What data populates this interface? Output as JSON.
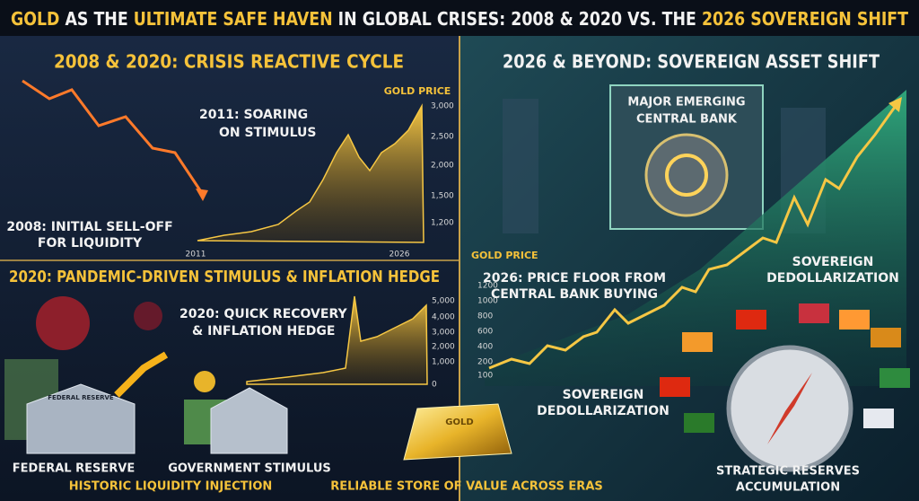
{
  "header": {
    "title": [
      "GOLD",
      " AS THE ",
      "ULTIMATE SAFE HAVEN",
      " IN GLOBAL CRISES: 2008 & 2020 VS. THE ",
      "2026 SOVEREIGN SHIFT"
    ]
  },
  "crisis_panel": {
    "heading": "2008 & 2020: CRISIS REACTIVE CYCLE",
    "chart_label": "GOLD PRICE",
    "yticks": [
      "3,000",
      "2,500",
      "2,000",
      "1,500",
      "1,200"
    ],
    "xticks": [
      "2011",
      "2026"
    ],
    "callouts": [
      [
        "2011: SOARING",
        "ON STIMULUS"
      ],
      [
        "2008: INITIAL SELL-OFF",
        "FOR LIQUIDITY"
      ]
    ]
  },
  "pandemic_panel": {
    "heading": "2020: PANDEMIC-DRIVEN STIMULUS & INFLATION HEDGE",
    "callout": [
      "2020: QUICK RECOVERY",
      "& INFLATION HEDGE"
    ],
    "yticks": [
      "5,000",
      "4,000",
      "3,000",
      "2,000",
      "1,000",
      "0"
    ],
    "building_sign": "FEDERAL RESERVE",
    "labels": [
      "FEDERAL RESERVE",
      "GOVERNMENT STIMULUS"
    ],
    "footer": "HISTORIC LIQUIDITY INJECTION"
  },
  "center": {
    "bar_label": "GOLD",
    "caption": "RELIABLE STORE OF VALUE ACROSS ERAS"
  },
  "sovereign_panel": {
    "heading": "2026 & BEYOND: SOVEREIGN ASSET SHIFT",
    "bank": [
      "MAJOR EMERGING",
      "CENTRAL BANK"
    ],
    "chart_label": "GOLD PRICE",
    "callout": [
      "2026: PRICE FLOOR FROM",
      "CENTRAL BANK BUYING"
    ],
    "yticks": [
      "1200",
      "1000",
      "800",
      "600",
      "400",
      "200",
      "100"
    ],
    "labels": [
      [
        "SOVEREIGN",
        "DEDOLLARIZATION"
      ],
      [
        "SOVEREIGN",
        "DEDOLLARIZATION"
      ],
      [
        "STRATEGIC RESERVES",
        "ACCUMULATION"
      ]
    ]
  }
}
